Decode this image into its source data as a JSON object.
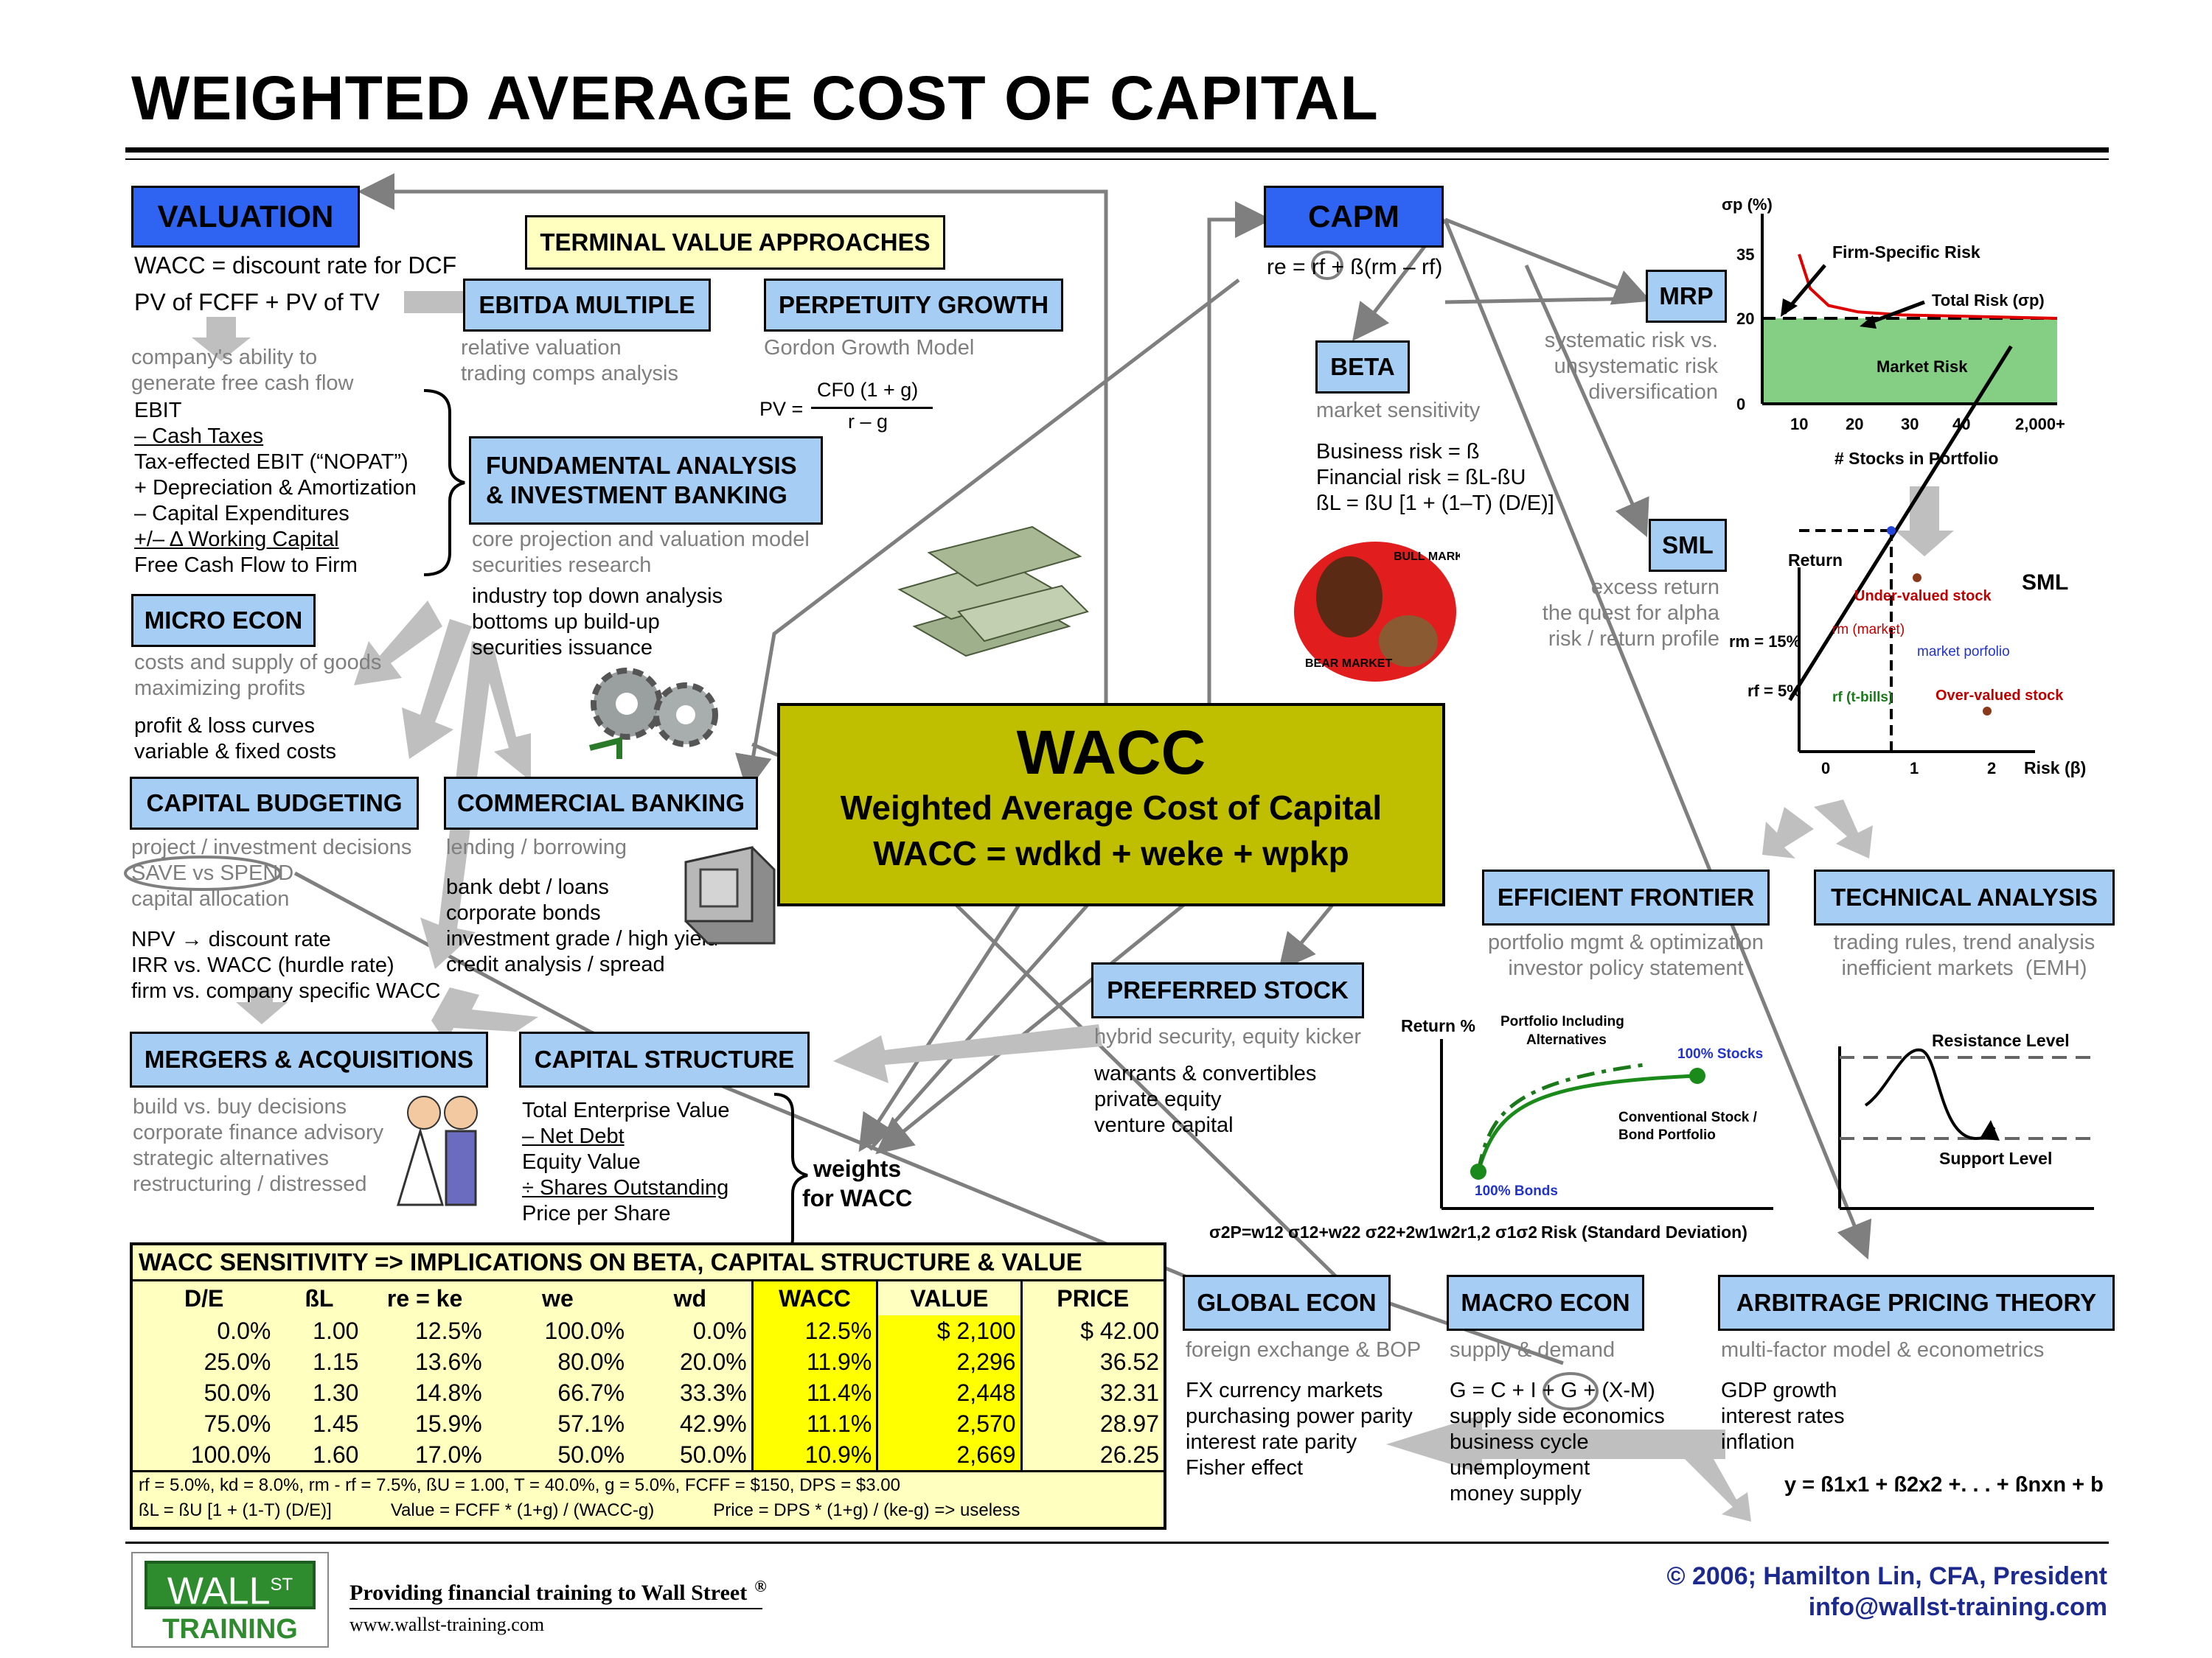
{
  "title": "WEIGHTED AVERAGE COST OF CAPITAL",
  "valuation": {
    "header": "VALUATION",
    "line1": "WACC = discount rate for DCF",
    "line2": "PV of FCFF + PV of TV",
    "desc": "company's ability to\ngenerate free cash flow",
    "fcf_lines": [
      "EBIT",
      "– Cash Taxes",
      "Tax-effected EBIT (“NOPAT”)",
      "+ Depreciation & Amortization",
      "– Capital Expenditures",
      "+/– Δ Working Capital",
      "Free Cash Flow to Firm"
    ]
  },
  "terminal": {
    "header": "TERMINAL VALUE APPROACHES",
    "ebitda": "EBITDA MULTIPLE",
    "ebitda_desc": "relative valuation\ntrading comps analysis",
    "perp": "PERPETUITY GROWTH",
    "perp_desc": "Gordon Growth Model",
    "pv_label": "PV =",
    "pv_num": "CF0 (1 + g)",
    "pv_den": "r – g"
  },
  "fundamental": {
    "header": "FUNDAMENTAL ANALYSIS\n& INVESTMENT BANKING",
    "desc": "core projection and valuation model\nsecurities research",
    "lines": "industry top down analysis\nbottoms up build-up\nsecurities issuance"
  },
  "micro": {
    "header": "MICRO ECON",
    "desc": "costs and supply of goods\nmaximizing profits",
    "lines": "profit & loss curves\nvariable & fixed costs"
  },
  "capbudget": {
    "header": "CAPITAL BUDGETING",
    "desc": "project / investment decisions\nSAVE vs SPEND\ncapital allocation",
    "lines": "NPV → discount rate\nIRR vs. WACC (hurdle rate)\nfirm vs. company specific WACC"
  },
  "commercial": {
    "header": "COMMERCIAL BANKING",
    "desc": "lending / borrowing",
    "lines": "bank debt / loans\ncorporate bonds\ninvestment grade / high yield\ncredit analysis / spread"
  },
  "ma": {
    "header": "MERGERS & ACQUISITIONS",
    "desc": "build vs. buy decisions\ncorporate finance advisory\nstrategic alternatives\nrestructuring / distressed"
  },
  "capstruct": {
    "header": "CAPITAL STRUCTURE",
    "lines": [
      "Total Enterprise Value",
      "– Net Debt",
      "Equity Value",
      "÷ Shares Outstanding",
      "Price per Share"
    ],
    "weights": "weights\nfor WACC"
  },
  "wacc": {
    "big": "WACC",
    "sub": "Weighted Average Cost of Capital",
    "formula": "WACC = wdkd + weke + wpkp"
  },
  "capm": {
    "header": "CAPM",
    "formula": "re = rf + ß(rm – rf)"
  },
  "mrp": {
    "header": "MRP",
    "desc": "systematic risk vs.\nunsystematic risk\ndiversification"
  },
  "beta": {
    "header": "BETA",
    "desc": "market sensitivity",
    "lines": "Business risk = ß\nFinancial risk = ßL-ßU\nßL = ßU [1 + (1–T) (D/E)]"
  },
  "sml": {
    "header": "SML",
    "desc": "excess return\nthe quest for alpha\nrisk / return profile"
  },
  "preferred": {
    "header": "PREFERRED STOCK",
    "desc": "hybrid security, equity kicker",
    "lines": "warrants & convertibles\nprivate equity\nventure capital"
  },
  "efficient": {
    "header": "EFFICIENT FRONTIER",
    "desc": "portfolio mgmt & optimization\ninvestor policy statement"
  },
  "technical": {
    "header": "TECHNICAL ANALYSIS",
    "desc": "trading rules, trend analysis\ninefficient markets  (EMH)"
  },
  "global": {
    "header": "GLOBAL ECON",
    "desc": "foreign exchange & BOP",
    "lines": "FX currency markets\npurchasing power parity\ninterest rate parity\nFisher effect"
  },
  "macro": {
    "header": "MACRO ECON",
    "desc": "supply & demand",
    "lines": "G = C + I + G + (X-M)\nsupply side economics\nbusiness cycle\nunemployment\nmoney supply"
  },
  "apt": {
    "header": "ARBITRAGE PRICING THEORY",
    "desc": "multi-factor model & econometrics",
    "lines": "GDP growth\ninterest rates\ninflation",
    "formula": "y = ß1x1 + ß2x2 +. . . + ßnxn + b"
  },
  "bullbear": {
    "bull": "BULL MARKET",
    "bear": "BEAR MARKET"
  },
  "chart_data": [
    {
      "type": "line",
      "title": "",
      "ylabel": "σp (%)",
      "xlabel": "# Stocks in Portfolio",
      "xticks": [
        "10",
        "20",
        "30",
        "40",
        "2,000+"
      ],
      "yticks": [
        "0",
        "20",
        "35"
      ],
      "annotations": [
        "Firm-Specific Risk",
        "Total Risk (σp)",
        "Market Risk"
      ],
      "series": [
        {
          "name": "Total Risk (σp)",
          "x": [
            5,
            10,
            20,
            30,
            40,
            2000
          ],
          "y": [
            35,
            27,
            23,
            21.5,
            20.8,
            20
          ]
        }
      ],
      "market_risk_level": 20
    },
    {
      "type": "line",
      "title": "SML",
      "ylabel": "Return",
      "xlabel": "Risk (β)",
      "xticks": [
        "0",
        "1",
        "2"
      ],
      "yticks": [
        "rf = 5%",
        "rm = 15%"
      ],
      "annotations": [
        "Under-valued stock",
        "rm (market)",
        "market porfolio",
        "rf (t-bills)",
        "Over-valued stock"
      ],
      "series": [
        {
          "name": "SML",
          "x": [
            0,
            1,
            2
          ],
          "y": [
            5,
            15,
            25
          ]
        }
      ]
    },
    {
      "type": "line",
      "title": "",
      "ylabel": "Return %",
      "xlabel": "Risk (Standard Deviation)",
      "formula": "σ2P=w12 σ12+w22 σ22+2w1w2r1,2 σ1σ2",
      "annotations": [
        "Portfolio Including\nAlternatives",
        "100% Stocks",
        "Conventional Stock /\nBond Portfolio",
        "100% Bonds"
      ]
    },
    {
      "type": "line",
      "title": "",
      "annotations": [
        "Resistance Level",
        "Support Level"
      ]
    },
    {
      "type": "table",
      "title": "WACC SENSITIVITY => IMPLICATIONS ON BETA, CAPITAL STRUCTURE & VALUE",
      "columns": [
        "D/E",
        "ßL",
        "re = ke",
        "we",
        "wd",
        "WACC",
        "VALUE",
        "PRICE"
      ],
      "rows": [
        [
          "0.0%",
          "1.00",
          "12.5%",
          "100.0%",
          "0.0%",
          "12.5%",
          "$ 2,100",
          "$ 42.00"
        ],
        [
          "25.0%",
          "1.15",
          "13.6%",
          "80.0%",
          "20.0%",
          "11.9%",
          "2,296",
          "36.52"
        ],
        [
          "50.0%",
          "1.30",
          "14.8%",
          "66.7%",
          "33.3%",
          "11.4%",
          "2,448",
          "32.31"
        ],
        [
          "75.0%",
          "1.45",
          "15.9%",
          "57.1%",
          "42.9%",
          "11.1%",
          "2,570",
          "28.97"
        ],
        [
          "100.0%",
          "1.60",
          "17.0%",
          "50.0%",
          "50.0%",
          "10.9%",
          "2,669",
          "26.25"
        ]
      ],
      "notes": [
        "rf = 5.0%, kd = 8.0%, rm - rf = 7.5%, ßU = 1.00, T = 40.0%, g = 5.0%, FCFF = $150, DPS = $3.00",
        "ßL = ßU [1 + (1-T) (D/E)]",
        "Value = FCFF * (1+g) / (WACC-g)",
        "Price = DPS * (1+g) / (ke-g) => useless"
      ]
    }
  ],
  "footer": {
    "logo_top": "WALL",
    "logo_st": "ST",
    "logo_bottom": "TRAINING",
    "tagline": "Providing financial training to Wall Street",
    "reg": "®",
    "url": "www.wallst-training.com",
    "copyright": "© 2006; Hamilton Lin, CFA, President",
    "email": "info@wallst-training.com"
  },
  "colors": {
    "blue_box": "#a6cef4",
    "valuation": "#2f64f2",
    "wacc_box": "#bfbf00",
    "highlight": "#ffff00"
  }
}
